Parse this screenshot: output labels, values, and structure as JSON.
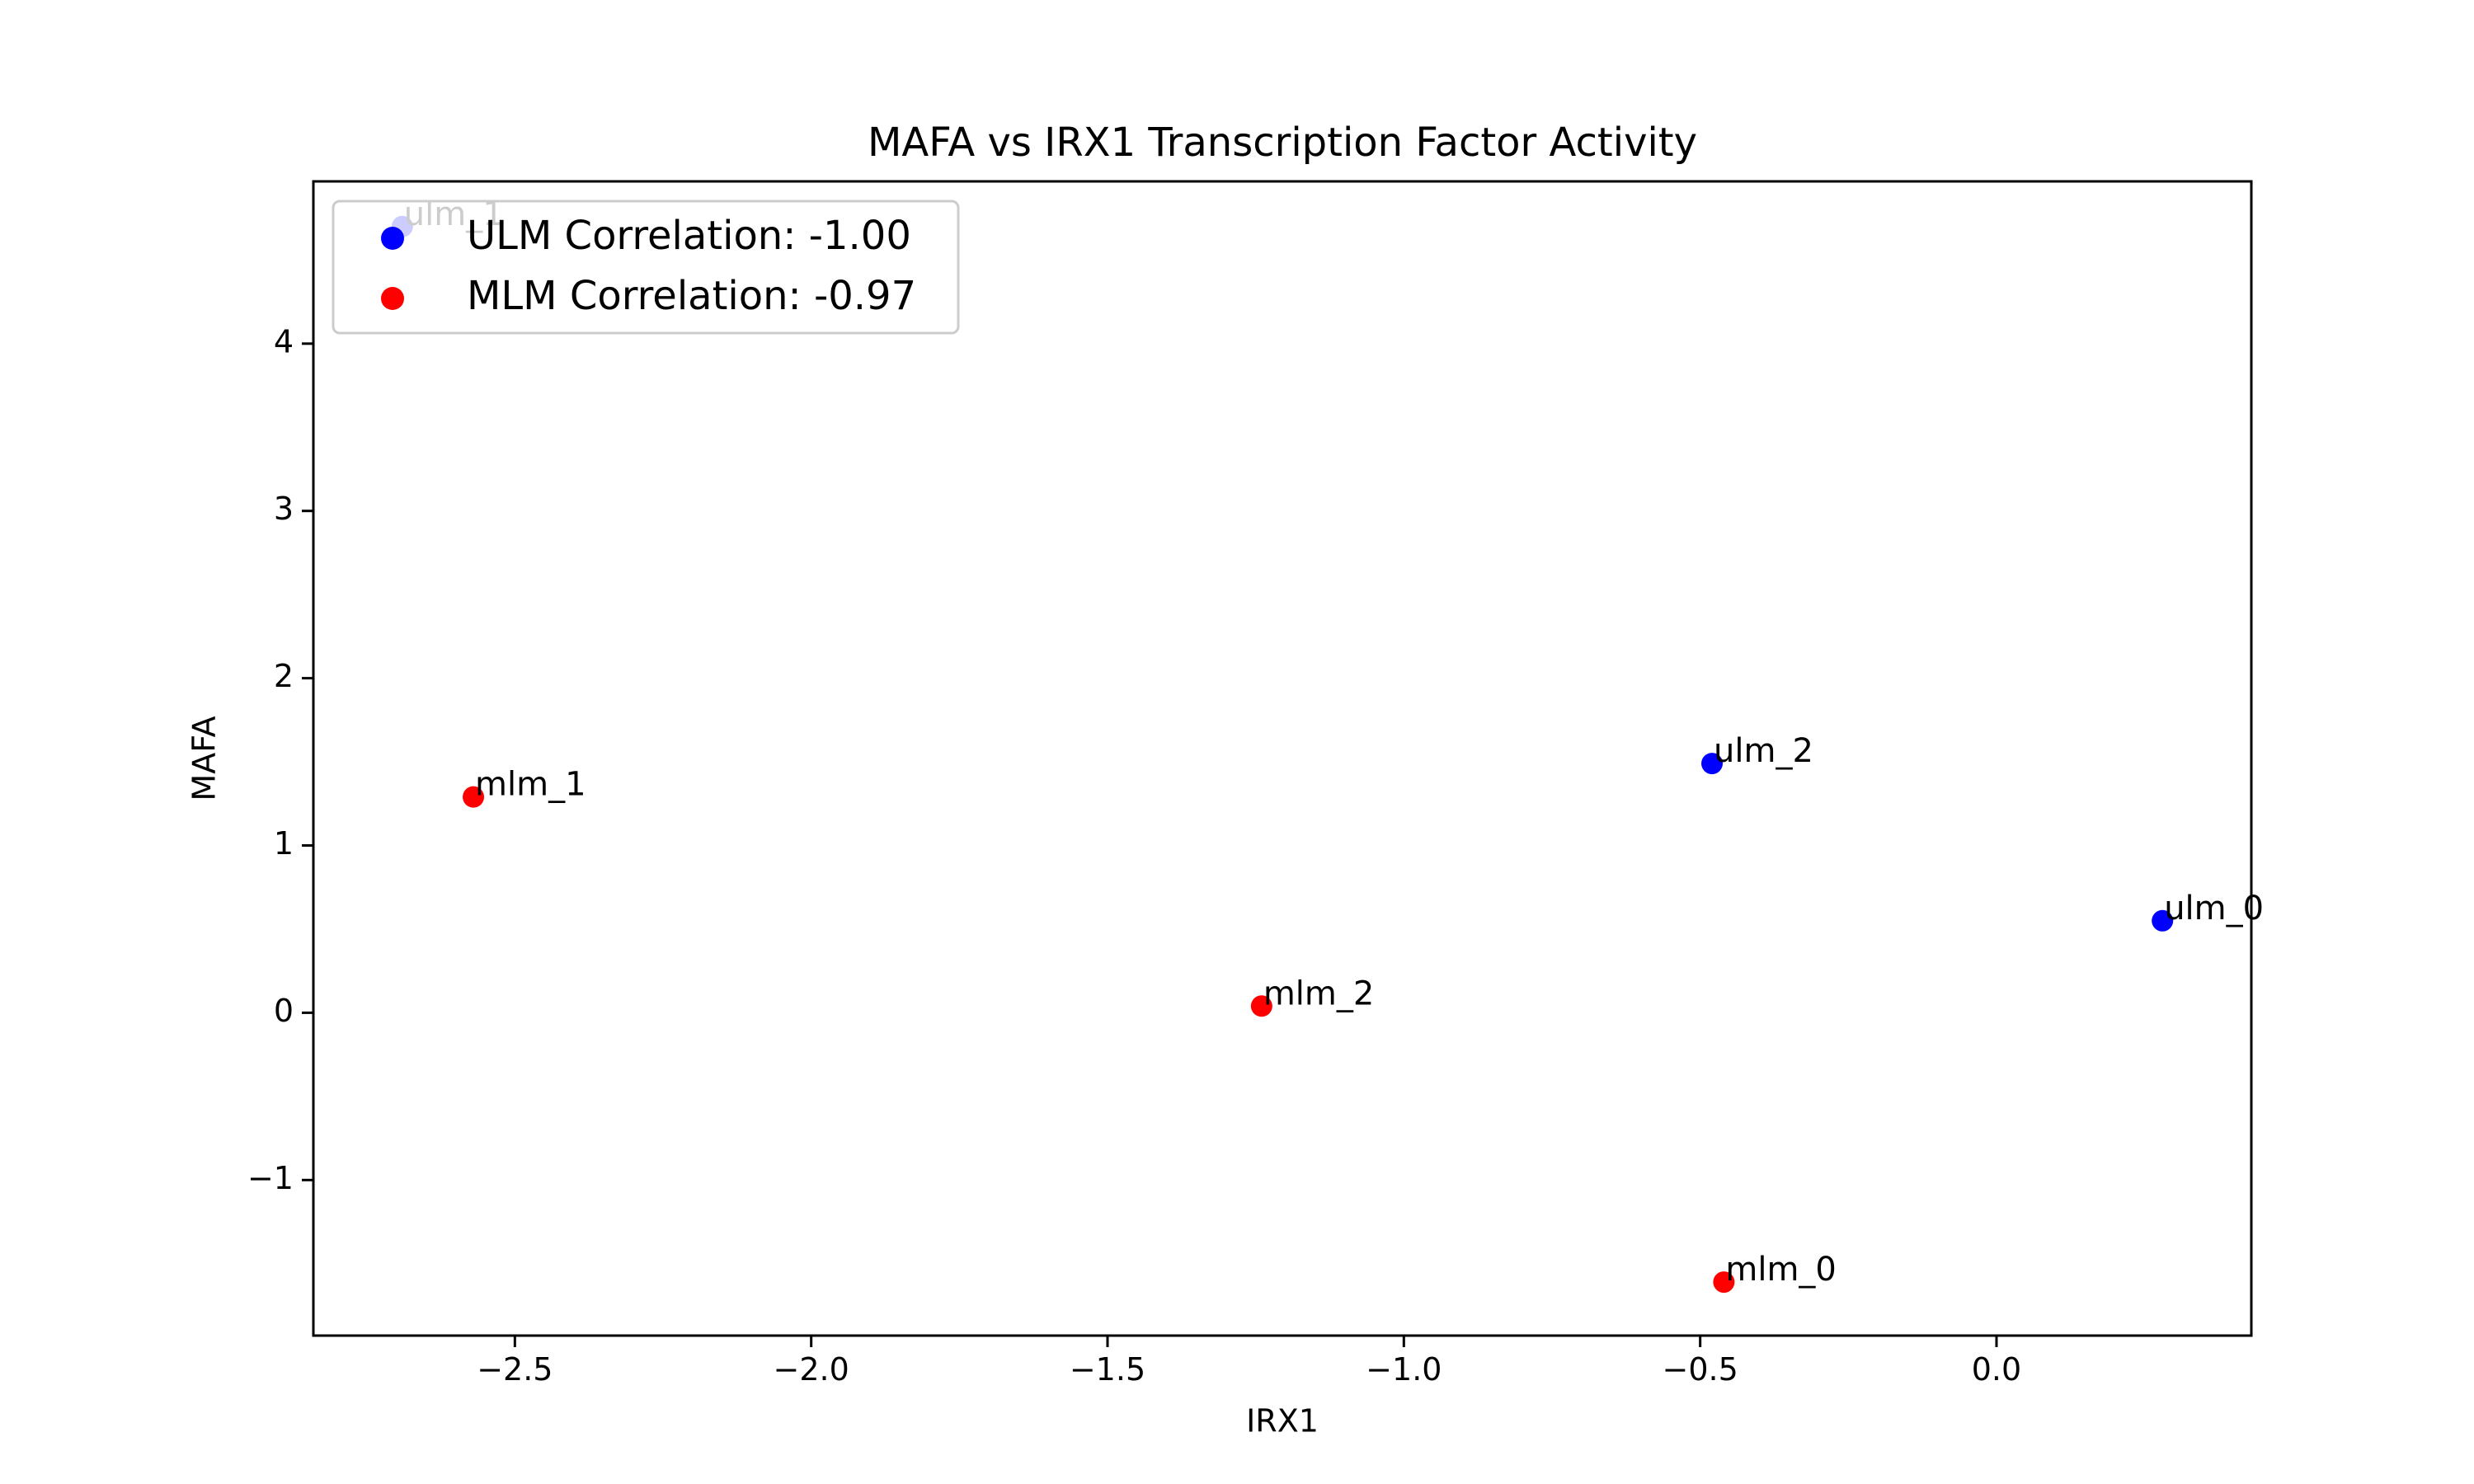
{
  "chart_data": {
    "type": "scatter",
    "title": "MAFA vs IRX1 Transcription Factor Activity",
    "xlabel": "IRX1",
    "ylabel": "MAFA",
    "xlim": [
      -2.84,
      0.43
    ],
    "ylim": [
      -1.93,
      4.97
    ],
    "xticks": [
      -2.5,
      -2.0,
      -1.5,
      -1.0,
      -0.5,
      0.0
    ],
    "xtick_labels": [
      "−2.5",
      "−2.0",
      "−1.5",
      "−1.0",
      "−0.5",
      "0.0"
    ],
    "yticks": [
      -1,
      0,
      1,
      2,
      3,
      4
    ],
    "ytick_labels": [
      "−1",
      "0",
      "1",
      "2",
      "3",
      "4"
    ],
    "grid": false,
    "legend_position": "top-left",
    "series": [
      {
        "name": "ULM Correlation: -1.00",
        "color": "#0000ff",
        "points": [
          {
            "label": "ulm_0",
            "x": 0.28,
            "y": 0.55
          },
          {
            "label": "ulm_1",
            "x": -2.69,
            "y": 4.7
          },
          {
            "label": "ulm_2",
            "x": -0.48,
            "y": 1.49
          }
        ]
      },
      {
        "name": "MLM Correlation: -0.97",
        "color": "#ff0000",
        "points": [
          {
            "label": "mlm_0",
            "x": -0.46,
            "y": -1.61
          },
          {
            "label": "mlm_1",
            "x": -2.57,
            "y": 1.29
          },
          {
            "label": "mlm_2",
            "x": -1.24,
            "y": 0.04
          }
        ]
      }
    ]
  }
}
